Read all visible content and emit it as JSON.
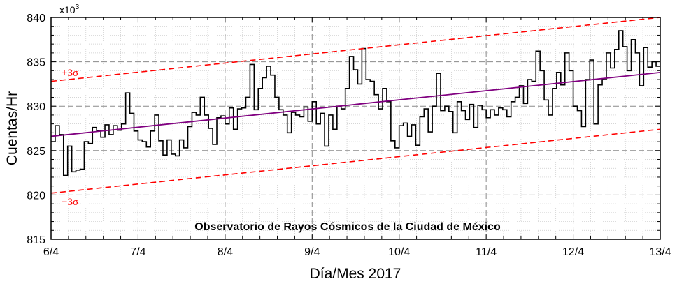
{
  "chart_data": {
    "type": "line",
    "subtype": "step",
    "annotation": "Observatorio de Rayos Cósmicos de la Ciudad de México",
    "xlabel": "Día/Mes 2017",
    "ylabel": "Cuentas/Hr",
    "y_multiplier_label": "x10",
    "y_multiplier_exp": "3",
    "x_tick_labels": [
      "6/4",
      "7/4",
      "8/4",
      "9/4",
      "10/4",
      "11/4",
      "12/4",
      "13/4"
    ],
    "y_ticks": [
      815,
      820,
      825,
      830,
      835,
      840
    ],
    "ylim": [
      815,
      840
    ],
    "grid": true,
    "series": [
      {
        "role": "counts",
        "color": "#000000",
        "values": [
          826.0,
          827.8,
          826.8,
          822.2,
          825.5,
          822.6,
          822.8,
          822.9,
          826.0,
          825.8,
          827.6,
          827.2,
          826.5,
          827.9,
          826.8,
          827.8,
          827.3,
          828.0,
          831.5,
          829.2,
          827.2,
          826.2,
          826.0,
          825.4,
          827.2,
          829.0,
          826.1,
          824.5,
          826.2,
          824.6,
          824.4,
          826.2,
          825.3,
          827.7,
          829.3,
          829.0,
          831.0,
          829.0,
          827.5,
          825.7,
          828.7,
          828.9,
          828.0,
          829.8,
          827.4,
          829.7,
          829.8,
          831.0,
          834.7,
          829.6,
          832.0,
          833.2,
          834.5,
          833.5,
          831.0,
          829.6,
          829.0,
          827.0,
          829.3,
          829.0,
          828.8,
          829.9,
          828.3,
          830.5,
          828.0,
          829.2,
          825.5,
          829.0,
          827.4,
          830.0,
          829.7,
          832.0,
          835.6,
          834.1,
          832.5,
          836.5,
          833.0,
          832.8,
          831.3,
          829.7,
          832.0,
          830.5,
          826.1,
          825.3,
          827.8,
          828.1,
          826.6,
          827.9,
          825.6,
          828.8,
          829.7,
          827.1,
          830.0,
          833.7,
          829.5,
          830.0,
          829.4,
          827.0,
          830.5,
          829.5,
          828.5,
          830.2,
          827.6,
          830.1,
          829.6,
          828.7,
          829.6,
          829.0,
          829.8,
          829.6,
          828.8,
          830.5,
          831.0,
          832.3,
          830.3,
          833.0,
          832.8,
          836.2,
          834.0,
          830.7,
          829.0,
          832.0,
          833.8,
          832.4,
          836.0,
          834.0,
          830.0,
          829.5,
          827.7,
          833.0,
          835.2,
          828.0,
          832.4,
          833.0,
          836.0,
          834.3,
          836.4,
          838.5,
          836.7,
          834.0,
          837.5,
          836.0,
          832.3,
          836.6,
          834.4,
          835.0,
          834.5
        ]
      },
      {
        "role": "trend",
        "color": "#800080",
        "start": 826.6,
        "end": 833.8
      },
      {
        "role": "upper",
        "name": "+3σ",
        "color": "#ff0000",
        "dashed": true,
        "start": 832.8,
        "end": 840.0
      },
      {
        "role": "lower",
        "name": "−3σ",
        "color": "#ff0000",
        "dashed": true,
        "start": 820.2,
        "end": 827.4
      }
    ]
  }
}
